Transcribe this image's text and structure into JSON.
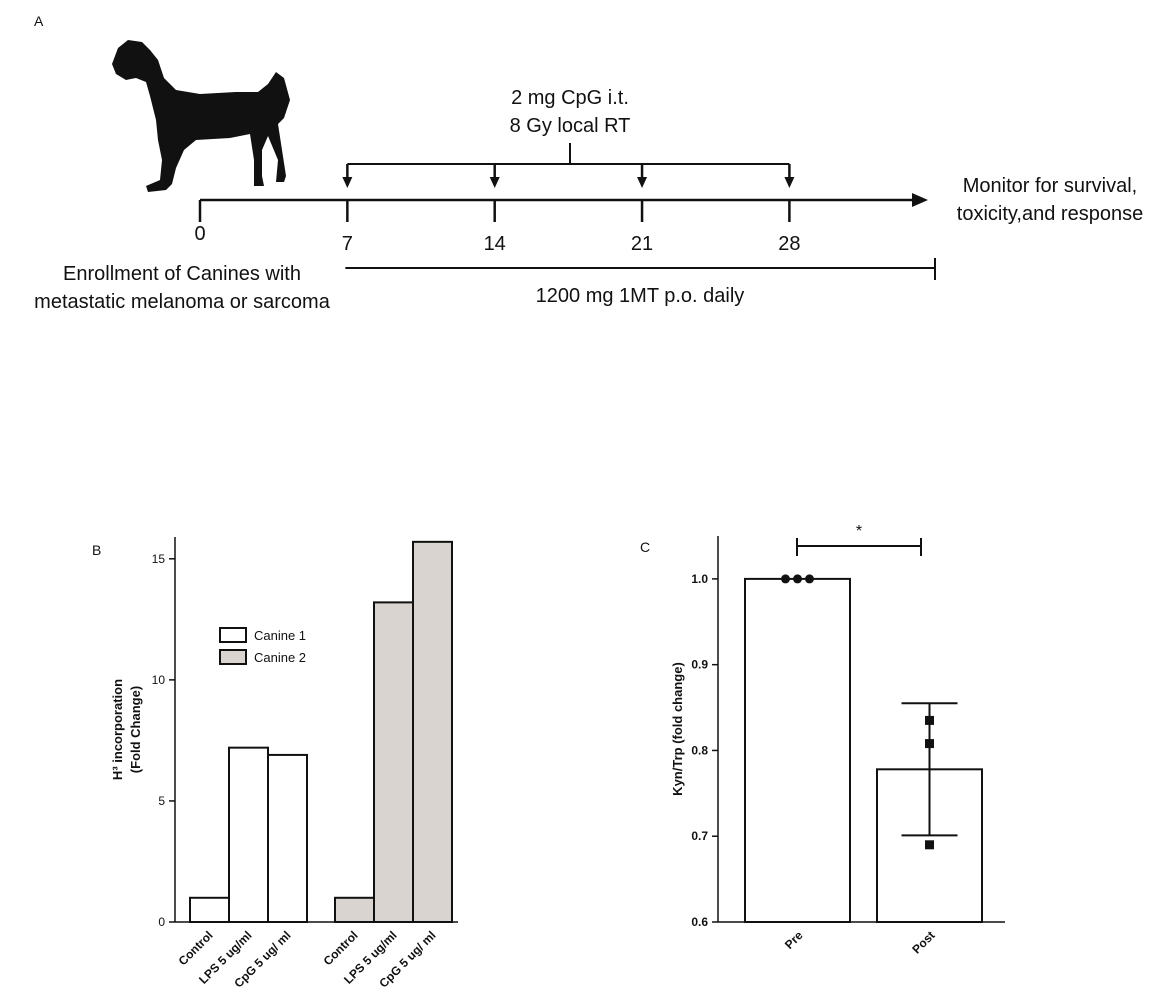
{
  "timeline": {
    "panel_label": "A",
    "days": [
      0,
      7,
      14,
      21,
      28
    ],
    "treatment": [
      "2 mg CpG i.t.",
      "8 Gy local RT"
    ],
    "enrollment": [
      "Enrollment of Canines with",
      "metastatic melanoma or sarcoma"
    ],
    "maintenance": "1200 mg 1MT p.o. daily",
    "outcome": [
      "Monitor for survival,",
      "toxicity,and response"
    ]
  },
  "chart_data": [
    {
      "type": "bar",
      "panel_label": "B",
      "y_label": [
        "H³ incorporation",
        "(Fold Change)"
      ],
      "categories": [
        "Control",
        "LPS 5 ug/ml",
        "CpG 5 ug/ ml",
        "Control",
        "LPS 5 ug/ml",
        "CpG 5 ug/ ml"
      ],
      "series": [
        {
          "name": "Canine 1",
          "color": "#ffffff",
          "values": [
            1,
            7.2,
            6.9,
            null,
            null,
            null
          ]
        },
        {
          "name": "Canine 2",
          "color": "#d9d4cf",
          "values": [
            null,
            null,
            null,
            1,
            13.2,
            15.7
          ]
        }
      ],
      "ylim": [
        0,
        15.9
      ],
      "yticks": [
        0,
        5,
        10,
        15
      ]
    },
    {
      "type": "bar-dot",
      "panel_label": "C",
      "y_label": "Kyn/Trp (fold change)",
      "categories": [
        "Pre",
        "Post"
      ],
      "values": [
        1.0,
        0.778
      ],
      "errors": [
        null,
        0.077
      ],
      "points": [
        [
          1.0,
          1.0,
          1.0
        ],
        [
          0.835,
          0.808,
          0.69
        ]
      ],
      "annotation": "*",
      "ylim": [
        0.6,
        1.05
      ],
      "yticks": [
        0.6,
        0.7,
        0.8,
        0.9,
        {
          "value": 1.0,
          "label": "1.0"
        }
      ]
    }
  ]
}
